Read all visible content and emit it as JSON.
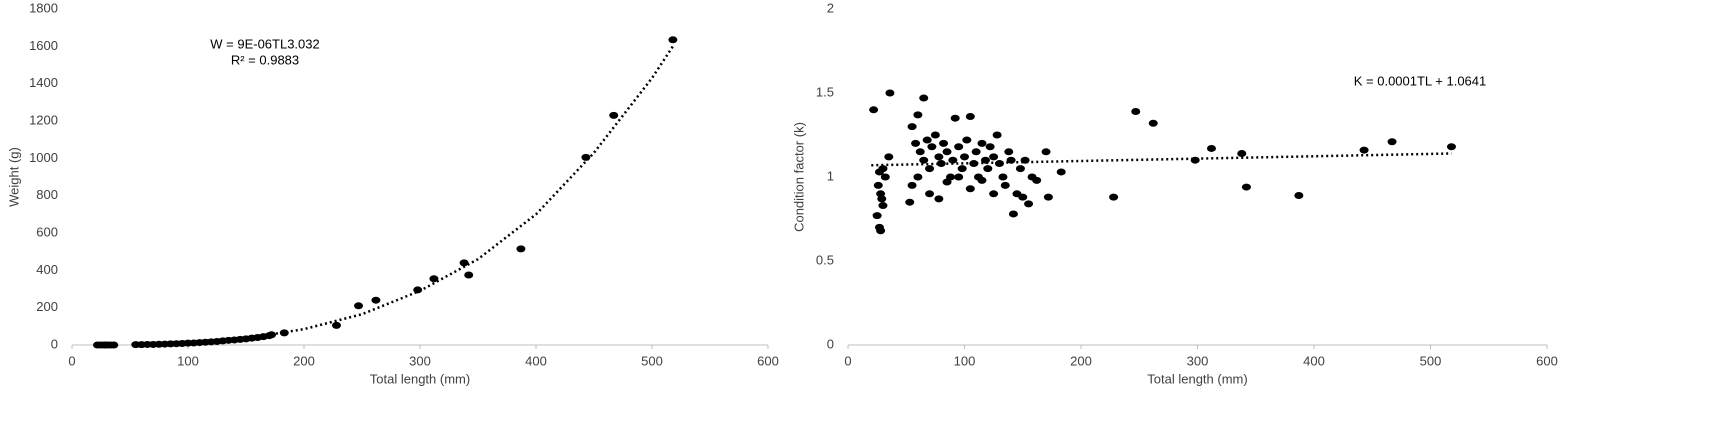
{
  "chart_data": [
    {
      "type": "scatter",
      "x_label": "Total length (mm)",
      "y_label": "Weight (g)",
      "color": "#000000",
      "xlim": [
        0,
        600
      ],
      "xticks": [
        0,
        100,
        200,
        300,
        400,
        500,
        600
      ],
      "ylim": [
        0,
        1800
      ],
      "yticks": [
        0,
        200,
        400,
        600,
        800,
        1000,
        1200,
        1400,
        1600,
        1800
      ],
      "annotations": [
        "W = 9E-06TL3.032",
        "R² = 0.9883"
      ],
      "x": [
        22,
        25,
        28,
        30,
        33,
        36,
        55,
        60,
        65,
        70,
        75,
        80,
        85,
        90,
        95,
        100,
        105,
        110,
        115,
        120,
        125,
        130,
        135,
        140,
        145,
        150,
        155,
        160,
        165,
        170,
        172,
        183,
        228,
        247,
        262,
        298,
        312,
        338,
        342,
        387,
        443,
        467,
        518
      ],
      "values": [
        0,
        0,
        0,
        0,
        0,
        0,
        2,
        2,
        3,
        3,
        4,
        5,
        6,
        7,
        8,
        10,
        11,
        13,
        15,
        17,
        19,
        22,
        25,
        27,
        30,
        33,
        37,
        40,
        45,
        50,
        55,
        65,
        105,
        210,
        240,
        295,
        355,
        440,
        375,
        515,
        1005,
        1230,
        1635
      ],
      "trendline": {
        "x": [
          60,
          100,
          150,
          200,
          250,
          300,
          350,
          400,
          450,
          500,
          518
        ],
        "values": [
          2,
          10,
          35,
          85,
          165,
          290,
          460,
          700,
          1030,
          1430,
          1600
        ]
      }
    },
    {
      "type": "scatter",
      "x_label": "Total length (mm)",
      "y_label": "Condition factor (k)",
      "color": "#000000",
      "xlim": [
        0,
        600
      ],
      "xticks": [
        0,
        100,
        200,
        300,
        400,
        500,
        600
      ],
      "ylim": [
        0,
        2
      ],
      "yticks": [
        0,
        0.5,
        1,
        1.5,
        2
      ],
      "annotations": [
        "K = 0.0001TL + 1.0641"
      ],
      "x": [
        22,
        36,
        65,
        25,
        27,
        28,
        26,
        28,
        30,
        32,
        35,
        27,
        30,
        29,
        55,
        60,
        58,
        62,
        65,
        68,
        70,
        72,
        75,
        78,
        80,
        82,
        85,
        88,
        90,
        92,
        95,
        98,
        100,
        102,
        105,
        108,
        110,
        112,
        115,
        118,
        120,
        122,
        125,
        128,
        130,
        133,
        135,
        138,
        140,
        142,
        145,
        148,
        150,
        152,
        155,
        158,
        162,
        170,
        172,
        183,
        53,
        55,
        60,
        70,
        78,
        85,
        95,
        105,
        115,
        125,
        228,
        247,
        262,
        298,
        312,
        338,
        342,
        387,
        443,
        467,
        518
      ],
      "values": [
        1.4,
        1.5,
        1.47,
        0.77,
        0.7,
        0.68,
        0.95,
        0.9,
        1.05,
        1.0,
        1.12,
        1.03,
        0.83,
        0.87,
        1.3,
        1.37,
        1.2,
        1.15,
        1.1,
        1.22,
        1.05,
        1.18,
        1.25,
        1.12,
        1.08,
        1.2,
        1.15,
        1.0,
        1.1,
        1.35,
        1.18,
        1.05,
        1.12,
        1.22,
        1.36,
        1.08,
        1.15,
        1.0,
        1.2,
        1.1,
        1.05,
        1.18,
        1.12,
        1.25,
        1.08,
        1.0,
        0.95,
        1.15,
        1.1,
        0.78,
        0.9,
        1.05,
        0.88,
        1.1,
        0.84,
        1.0,
        0.98,
        1.15,
        0.88,
        1.03,
        0.85,
        0.95,
        1.0,
        0.9,
        0.87,
        0.97,
        1.0,
        0.93,
        0.98,
        0.9,
        0.88,
        1.39,
        1.32,
        1.1,
        1.17,
        1.14,
        0.94,
        0.89,
        1.16,
        1.21,
        1.18
      ],
      "trendline": {
        "x": [
          20,
          518
        ],
        "values": [
          1.07,
          1.14
        ]
      }
    }
  ]
}
